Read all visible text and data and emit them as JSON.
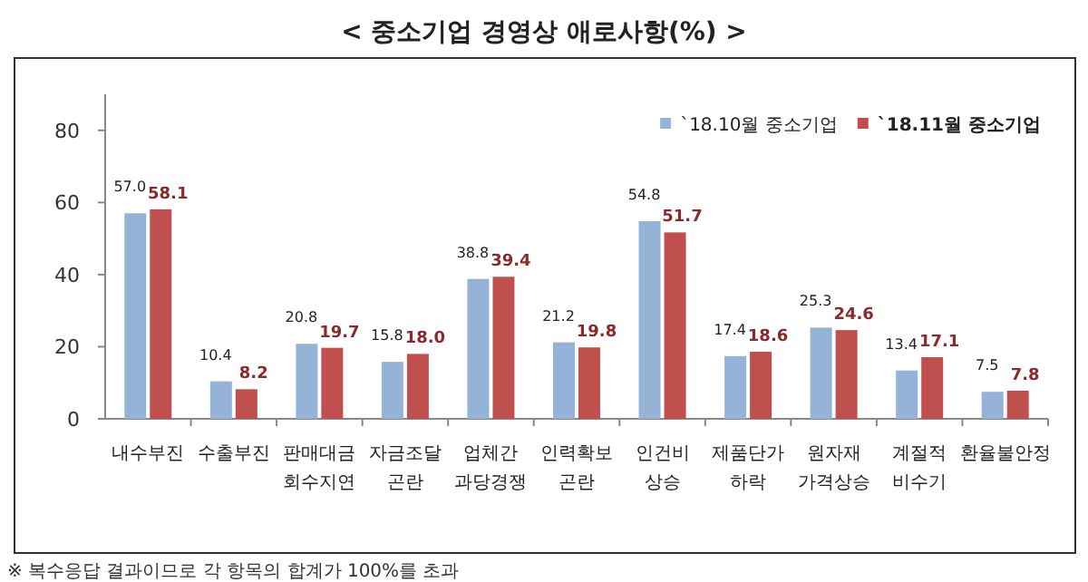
{
  "chart_data": {
    "type": "bar",
    "title": "< 중소기업 경영상 애로사항(%) >",
    "categories": [
      "내수부진",
      "수출부진",
      "판매대금\n회수지연",
      "자금조달\n곤란",
      "업체간\n과당경쟁",
      "인력확보\n곤란",
      "인건비\n상승",
      "제품단가\n하락",
      "원자재\n가격상승",
      "계절적\n비수기",
      "환율불안정"
    ],
    "series": [
      {
        "name": "`18.10월 중소기업",
        "color": "#95b3d7",
        "values": [
          57.0,
          10.4,
          20.8,
          15.8,
          38.8,
          21.2,
          54.8,
          17.4,
          25.3,
          13.4,
          7.5
        ],
        "value_labels": [
          "57.0",
          "10.4",
          "20.8",
          "15.8",
          "38.8",
          "21.2",
          "54.8",
          "17.4",
          "25.3",
          "13.4",
          "7.5"
        ]
      },
      {
        "name": "`18.11월 중소기업",
        "color": "#c0504d",
        "values": [
          58.1,
          8.2,
          19.7,
          18.0,
          39.4,
          19.8,
          51.7,
          18.6,
          24.6,
          17.1,
          7.8
        ],
        "value_labels": [
          "58.1",
          "8.2",
          "19.7",
          "18.0",
          "39.4",
          "19.8",
          "51.7",
          "18.6",
          "24.6",
          "17.1",
          "7.8"
        ]
      }
    ],
    "ylim": [
      0,
      90
    ],
    "yticks": [
      0,
      20,
      40,
      60,
      80
    ],
    "grid": false,
    "legend": "top right",
    "annotations": [
      "※ 복수응답 결과이므로 각 항목의 합계가 100%를 초과"
    ]
  }
}
